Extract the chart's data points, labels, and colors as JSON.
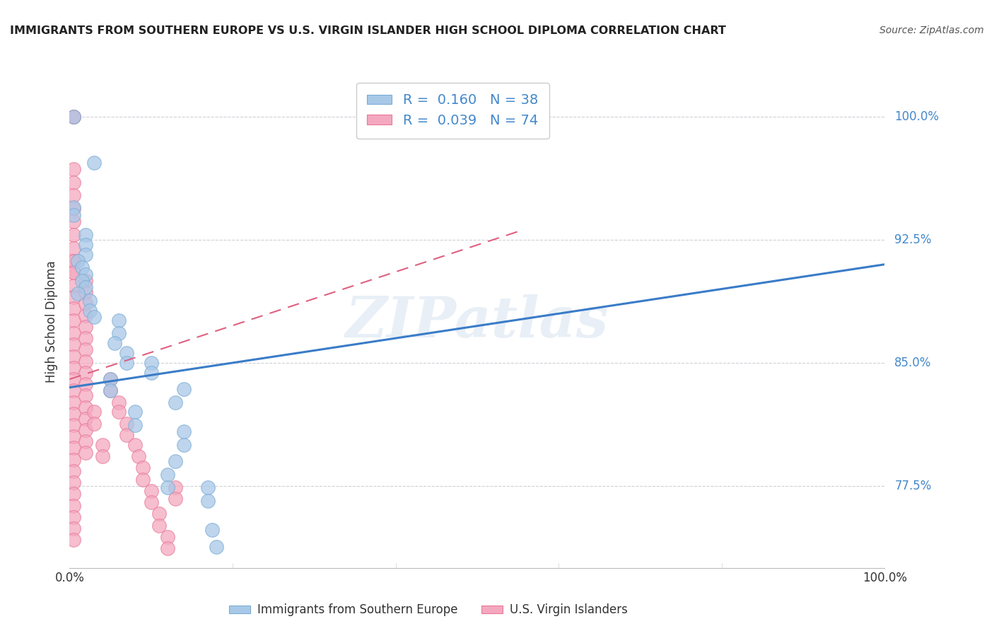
{
  "title": "IMMIGRANTS FROM SOUTHERN EUROPE VS U.S. VIRGIN ISLANDER HIGH SCHOOL DIPLOMA CORRELATION CHART",
  "source_text": "Source: ZipAtlas.com",
  "ylabel": "High School Diploma",
  "xlim": [
    0.0,
    1.0
  ],
  "ylim": [
    0.725,
    1.025
  ],
  "ytick_labels": [
    "77.5%",
    "85.0%",
    "92.5%",
    "100.0%"
  ],
  "ytick_values": [
    0.775,
    0.85,
    0.925,
    1.0
  ],
  "watermark": "ZIPatlas",
  "blue_color": "#a8c8e8",
  "pink_color": "#f4a8c0",
  "blue_edge_color": "#7aacd4",
  "pink_edge_color": "#e87898",
  "blue_line_color": "#3a7cc8",
  "pink_line_color": "#e06080",
  "grid_color": "#d0d0d8",
  "background_color": "#ffffff",
  "title_color": "#222222",
  "source_color": "#555555",
  "yaxis_color": "#4488cc",
  "blue_R": 0.16,
  "blue_N": 38,
  "pink_R": 0.039,
  "pink_N": 74,
  "blue_trend_x": [
    0.0,
    1.0
  ],
  "blue_trend_y": [
    0.835,
    0.91
  ],
  "pink_trend_x": [
    0.0,
    0.55
  ],
  "pink_trend_y": [
    0.84,
    0.93
  ],
  "blue_scatter": [
    [
      0.005,
      1.0
    ],
    [
      0.03,
      0.972
    ],
    [
      0.005,
      0.945
    ],
    [
      0.005,
      0.94
    ],
    [
      0.02,
      0.928
    ],
    [
      0.02,
      0.922
    ],
    [
      0.02,
      0.916
    ],
    [
      0.01,
      0.912
    ],
    [
      0.015,
      0.908
    ],
    [
      0.02,
      0.904
    ],
    [
      0.015,
      0.9
    ],
    [
      0.02,
      0.896
    ],
    [
      0.01,
      0.892
    ],
    [
      0.025,
      0.888
    ],
    [
      0.025,
      0.882
    ],
    [
      0.03,
      0.878
    ],
    [
      0.06,
      0.876
    ],
    [
      0.06,
      0.868
    ],
    [
      0.055,
      0.862
    ],
    [
      0.07,
      0.856
    ],
    [
      0.07,
      0.85
    ],
    [
      0.1,
      0.85
    ],
    [
      0.1,
      0.844
    ],
    [
      0.05,
      0.84
    ],
    [
      0.05,
      0.833
    ],
    [
      0.14,
      0.834
    ],
    [
      0.13,
      0.826
    ],
    [
      0.08,
      0.82
    ],
    [
      0.08,
      0.812
    ],
    [
      0.14,
      0.808
    ],
    [
      0.14,
      0.8
    ],
    [
      0.13,
      0.79
    ],
    [
      0.12,
      0.782
    ],
    [
      0.12,
      0.774
    ],
    [
      0.17,
      0.774
    ],
    [
      0.17,
      0.766
    ],
    [
      0.175,
      0.748
    ],
    [
      0.18,
      0.738
    ]
  ],
  "pink_scatter": [
    [
      0.005,
      1.0
    ],
    [
      0.005,
      1.0
    ],
    [
      0.005,
      0.968
    ],
    [
      0.005,
      0.96
    ],
    [
      0.005,
      0.952
    ],
    [
      0.005,
      0.944
    ],
    [
      0.005,
      0.936
    ],
    [
      0.005,
      0.928
    ],
    [
      0.005,
      0.92
    ],
    [
      0.005,
      0.912
    ],
    [
      0.005,
      0.905
    ],
    [
      0.005,
      0.897
    ],
    [
      0.005,
      0.89
    ],
    [
      0.005,
      0.883
    ],
    [
      0.005,
      0.876
    ],
    [
      0.005,
      0.868
    ],
    [
      0.005,
      0.861
    ],
    [
      0.005,
      0.854
    ],
    [
      0.005,
      0.847
    ],
    [
      0.005,
      0.84
    ],
    [
      0.005,
      0.833
    ],
    [
      0.005,
      0.826
    ],
    [
      0.005,
      0.819
    ],
    [
      0.005,
      0.812
    ],
    [
      0.005,
      0.805
    ],
    [
      0.005,
      0.798
    ],
    [
      0.005,
      0.791
    ],
    [
      0.005,
      0.784
    ],
    [
      0.005,
      0.777
    ],
    [
      0.005,
      0.77
    ],
    [
      0.005,
      0.763
    ],
    [
      0.005,
      0.756
    ],
    [
      0.005,
      0.749
    ],
    [
      0.005,
      0.742
    ],
    [
      0.005,
      0.912
    ],
    [
      0.005,
      0.905
    ],
    [
      0.02,
      0.9
    ],
    [
      0.02,
      0.893
    ],
    [
      0.02,
      0.886
    ],
    [
      0.02,
      0.879
    ],
    [
      0.02,
      0.872
    ],
    [
      0.02,
      0.865
    ],
    [
      0.02,
      0.858
    ],
    [
      0.02,
      0.851
    ],
    [
      0.02,
      0.844
    ],
    [
      0.02,
      0.837
    ],
    [
      0.02,
      0.83
    ],
    [
      0.02,
      0.823
    ],
    [
      0.02,
      0.816
    ],
    [
      0.02,
      0.809
    ],
    [
      0.02,
      0.802
    ],
    [
      0.02,
      0.795
    ],
    [
      0.03,
      0.82
    ],
    [
      0.03,
      0.813
    ],
    [
      0.04,
      0.8
    ],
    [
      0.04,
      0.793
    ],
    [
      0.05,
      0.84
    ],
    [
      0.05,
      0.833
    ],
    [
      0.06,
      0.826
    ],
    [
      0.06,
      0.82
    ],
    [
      0.07,
      0.813
    ],
    [
      0.07,
      0.806
    ],
    [
      0.08,
      0.8
    ],
    [
      0.085,
      0.793
    ],
    [
      0.09,
      0.786
    ],
    [
      0.09,
      0.779
    ],
    [
      0.1,
      0.772
    ],
    [
      0.1,
      0.765
    ],
    [
      0.11,
      0.758
    ],
    [
      0.11,
      0.751
    ],
    [
      0.12,
      0.744
    ],
    [
      0.12,
      0.737
    ],
    [
      0.13,
      0.774
    ],
    [
      0.13,
      0.767
    ]
  ]
}
